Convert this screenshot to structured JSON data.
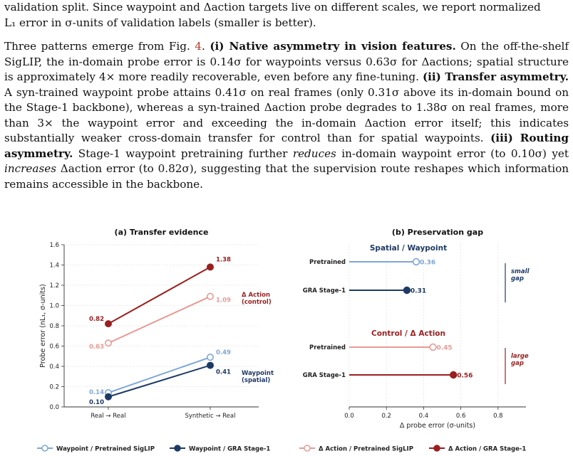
{
  "intro": {
    "line1": "validation split. Since waypoint and Δaction targets live on different scales, we report normalized",
    "line2": "L₁ error in σ-units of validation labels (smaller is better)."
  },
  "body": {
    "t1": "Three patterns emerge from Fig. ",
    "fig_ref": "4",
    "t2": ". ",
    "b1": "(i) Native asymmetry in vision features.",
    "t3": " On the off-the-shelf SigLIP, the in-domain probe error is 0.14σ for waypoints versus 0.63σ for Δactions; spatial structure is approximately 4× more readily recoverable, even before any fine-tuning. ",
    "b2": "(ii) Transfer asymmetry.",
    "t4": " A syn-trained waypoint probe attains 0.41σ on real frames (only 0.31σ above its in-domain bound on the Stage-1 backbone), whereas a syn-trained Δaction probe degrades to 1.38σ on real frames, more than 3× the waypoint error and exceeding the in-domain Δaction error itself; this indicates substantially weaker cross-domain transfer for control than for spatial waypoints. ",
    "b3": "(iii) Routing asymmetry.",
    "t5": " Stage-1 waypoint pretraining further ",
    "i1": "reduces",
    "t6": " in-domain waypoint error (to 0.10σ) yet ",
    "i2": "increases",
    "t7": " Δaction error (to 0.82σ), suggesting that the supervision route reshapes which information remains accessible in the backbone."
  },
  "chart_data": [
    {
      "type": "line",
      "title": "(a) Transfer evidence",
      "ylabel": "Probe error  (nL₁, σ-units)",
      "categories": [
        "Real → Real",
        "Synthetic → Real"
      ],
      "ylim": [
        0,
        1.6
      ],
      "yticks": [
        "0.0",
        "0.2",
        "0.4",
        "0.6",
        "0.8",
        "1.0",
        "1.2",
        "1.4",
        "1.6"
      ],
      "grid": true,
      "series": [
        {
          "name": "Waypoint / Pretrained SigLIP",
          "values": [
            0.14,
            0.49
          ],
          "labels": [
            "0.14",
            "0.49"
          ],
          "color": "#7ea6d6",
          "filled": false
        },
        {
          "name": "Waypoint / GRA Stage-1",
          "values": [
            0.1,
            0.41
          ],
          "labels": [
            "0.10",
            "0.41"
          ],
          "color": "#1d3a66",
          "filled": true
        },
        {
          "name": "Δ Action / Pretrained SigLIP",
          "values": [
            0.63,
            1.09
          ],
          "labels": [
            "0.63",
            "1.09"
          ],
          "color": "#e89a94",
          "filled": false
        },
        {
          "name": "Δ Action / GRA Stage-1",
          "values": [
            0.82,
            1.38
          ],
          "labels": [
            "0.82",
            "1.38"
          ],
          "color": "#9a1f1f",
          "filled": true
        }
      ],
      "annotations": [
        {
          "text": "Δ Action",
          "text2": "(control)",
          "color": "#9a1f1f"
        },
        {
          "text": "Waypoint",
          "text2": "(spatial)",
          "color": "#1d3a66"
        }
      ]
    },
    {
      "type": "bar",
      "title": "(b) Preservation gap",
      "xlabel": "Δ probe error  (σ-units)",
      "xlim": [
        0,
        0.95
      ],
      "xticks": [
        "0.0",
        "0.2",
        "0.4",
        "0.6",
        "0.8"
      ],
      "grid": true,
      "groups": [
        {
          "name": "Spatial / Waypoint",
          "color": "#1d3a66",
          "rows": [
            {
              "label": "Pretrained",
              "value": 0.36,
              "value_label": "0.36",
              "color": "#7ea6d6",
              "filled": false
            },
            {
              "label": "GRA Stage-1",
              "value": 0.31,
              "value_label": "0.31",
              "color": "#1d3a66",
              "filled": true
            }
          ],
          "gap_note": [
            "small",
            "gap"
          ]
        },
        {
          "name": "Control / Δ Action",
          "color": "#9a1f1f",
          "rows": [
            {
              "label": "Pretrained",
              "value": 0.45,
              "value_label": "0.45",
              "color": "#e89a94",
              "filled": false
            },
            {
              "label": "GRA Stage-1",
              "value": 0.56,
              "value_label": "0.56",
              "color": "#9a1f1f",
              "filled": true
            }
          ],
          "gap_note": [
            "large",
            "gap"
          ]
        }
      ]
    }
  ],
  "legend": [
    {
      "label": "Waypoint  /  Pretrained SigLIP",
      "color": "#7ea6d6",
      "filled": false
    },
    {
      "label": "Waypoint  /  GRA Stage-1",
      "color": "#1d3a66",
      "filled": true
    },
    {
      "label": "Δ Action  /  Pretrained SigLIP",
      "color": "#e89a94",
      "filled": false
    },
    {
      "label": "Δ Action  /  GRA Stage-1",
      "color": "#9a1f1f",
      "filled": true
    }
  ]
}
